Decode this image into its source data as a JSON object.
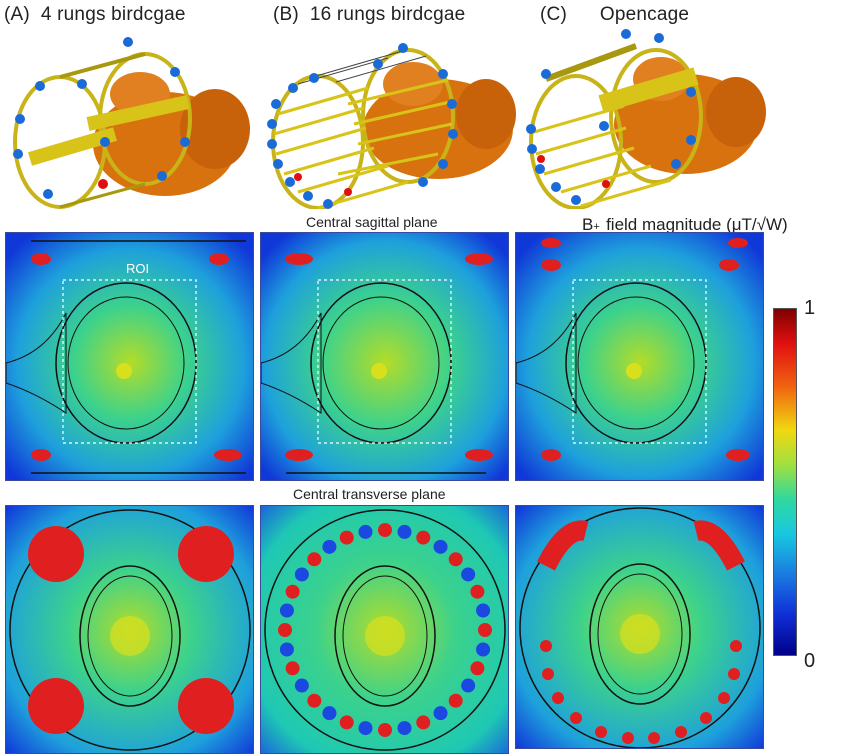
{
  "titles": {
    "a": "(A)  4 rungs birdcgae",
    "b": "(B)  16 rungs birdcgae",
    "c": "(C)      Opencage"
  },
  "captions": {
    "sagittal": "Central sagittal plane",
    "transverse": "Central transverse plane",
    "roi": "ROI"
  },
  "colorbar": {
    "title_main": "B",
    "title_sub": "1",
    "title_sup": "+",
    "title_rest": " field magnitude (μT/√W)",
    "max": "1",
    "min": "0"
  },
  "colors": {
    "field_low": "#0a2ad8",
    "field_mid": "#1ec8b4",
    "field_high": "#d81e1e",
    "head": "#d8720e",
    "coil": "#d8c418"
  }
}
